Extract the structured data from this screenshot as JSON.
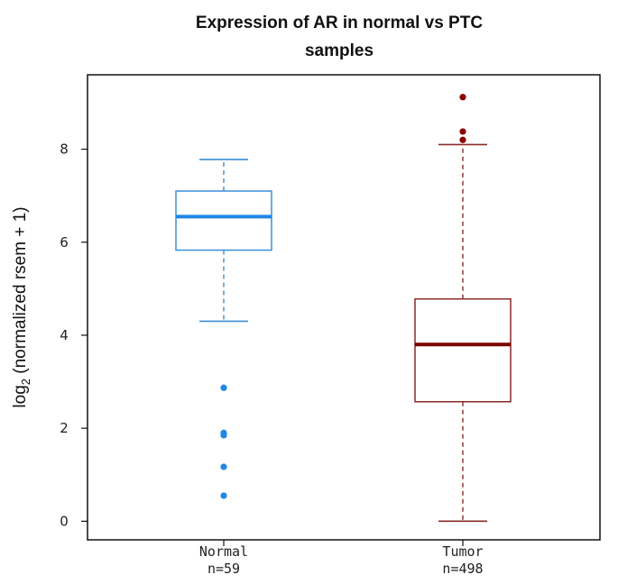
{
  "chart_data": {
    "type": "boxplot",
    "title_line1": "Expression of AR in normal vs PTC",
    "title_line2": "samples",
    "ylabel_main": "log",
    "ylabel_sub": "2",
    "ylabel_rest": " (normalized rsem + 1)",
    "ylim": [
      -0.4,
      9.6
    ],
    "yticks": [
      0,
      2,
      4,
      6,
      8
    ],
    "categories": [
      {
        "name": "Normal",
        "count_label": "n=59",
        "color": "#3a8fd9",
        "median_color": "#1e88e5",
        "outlier_color": "#1e88e5",
        "whisker_low": 4.3,
        "q1": 5.83,
        "median": 6.55,
        "q3": 7.1,
        "whisker_high": 7.78,
        "outliers": [
          2.87,
          1.9,
          1.85,
          1.17,
          0.55
        ]
      },
      {
        "name": "Tumor",
        "count_label": "n=498",
        "color": "#8b2a2a",
        "median_color": "#7a0000",
        "outlier_color": "#8b0000",
        "whisker_low": 0.0,
        "q1": 2.57,
        "median": 3.8,
        "q3": 4.78,
        "whisker_high": 8.1,
        "outliers": [
          8.2,
          8.38,
          9.12
        ]
      }
    ]
  }
}
